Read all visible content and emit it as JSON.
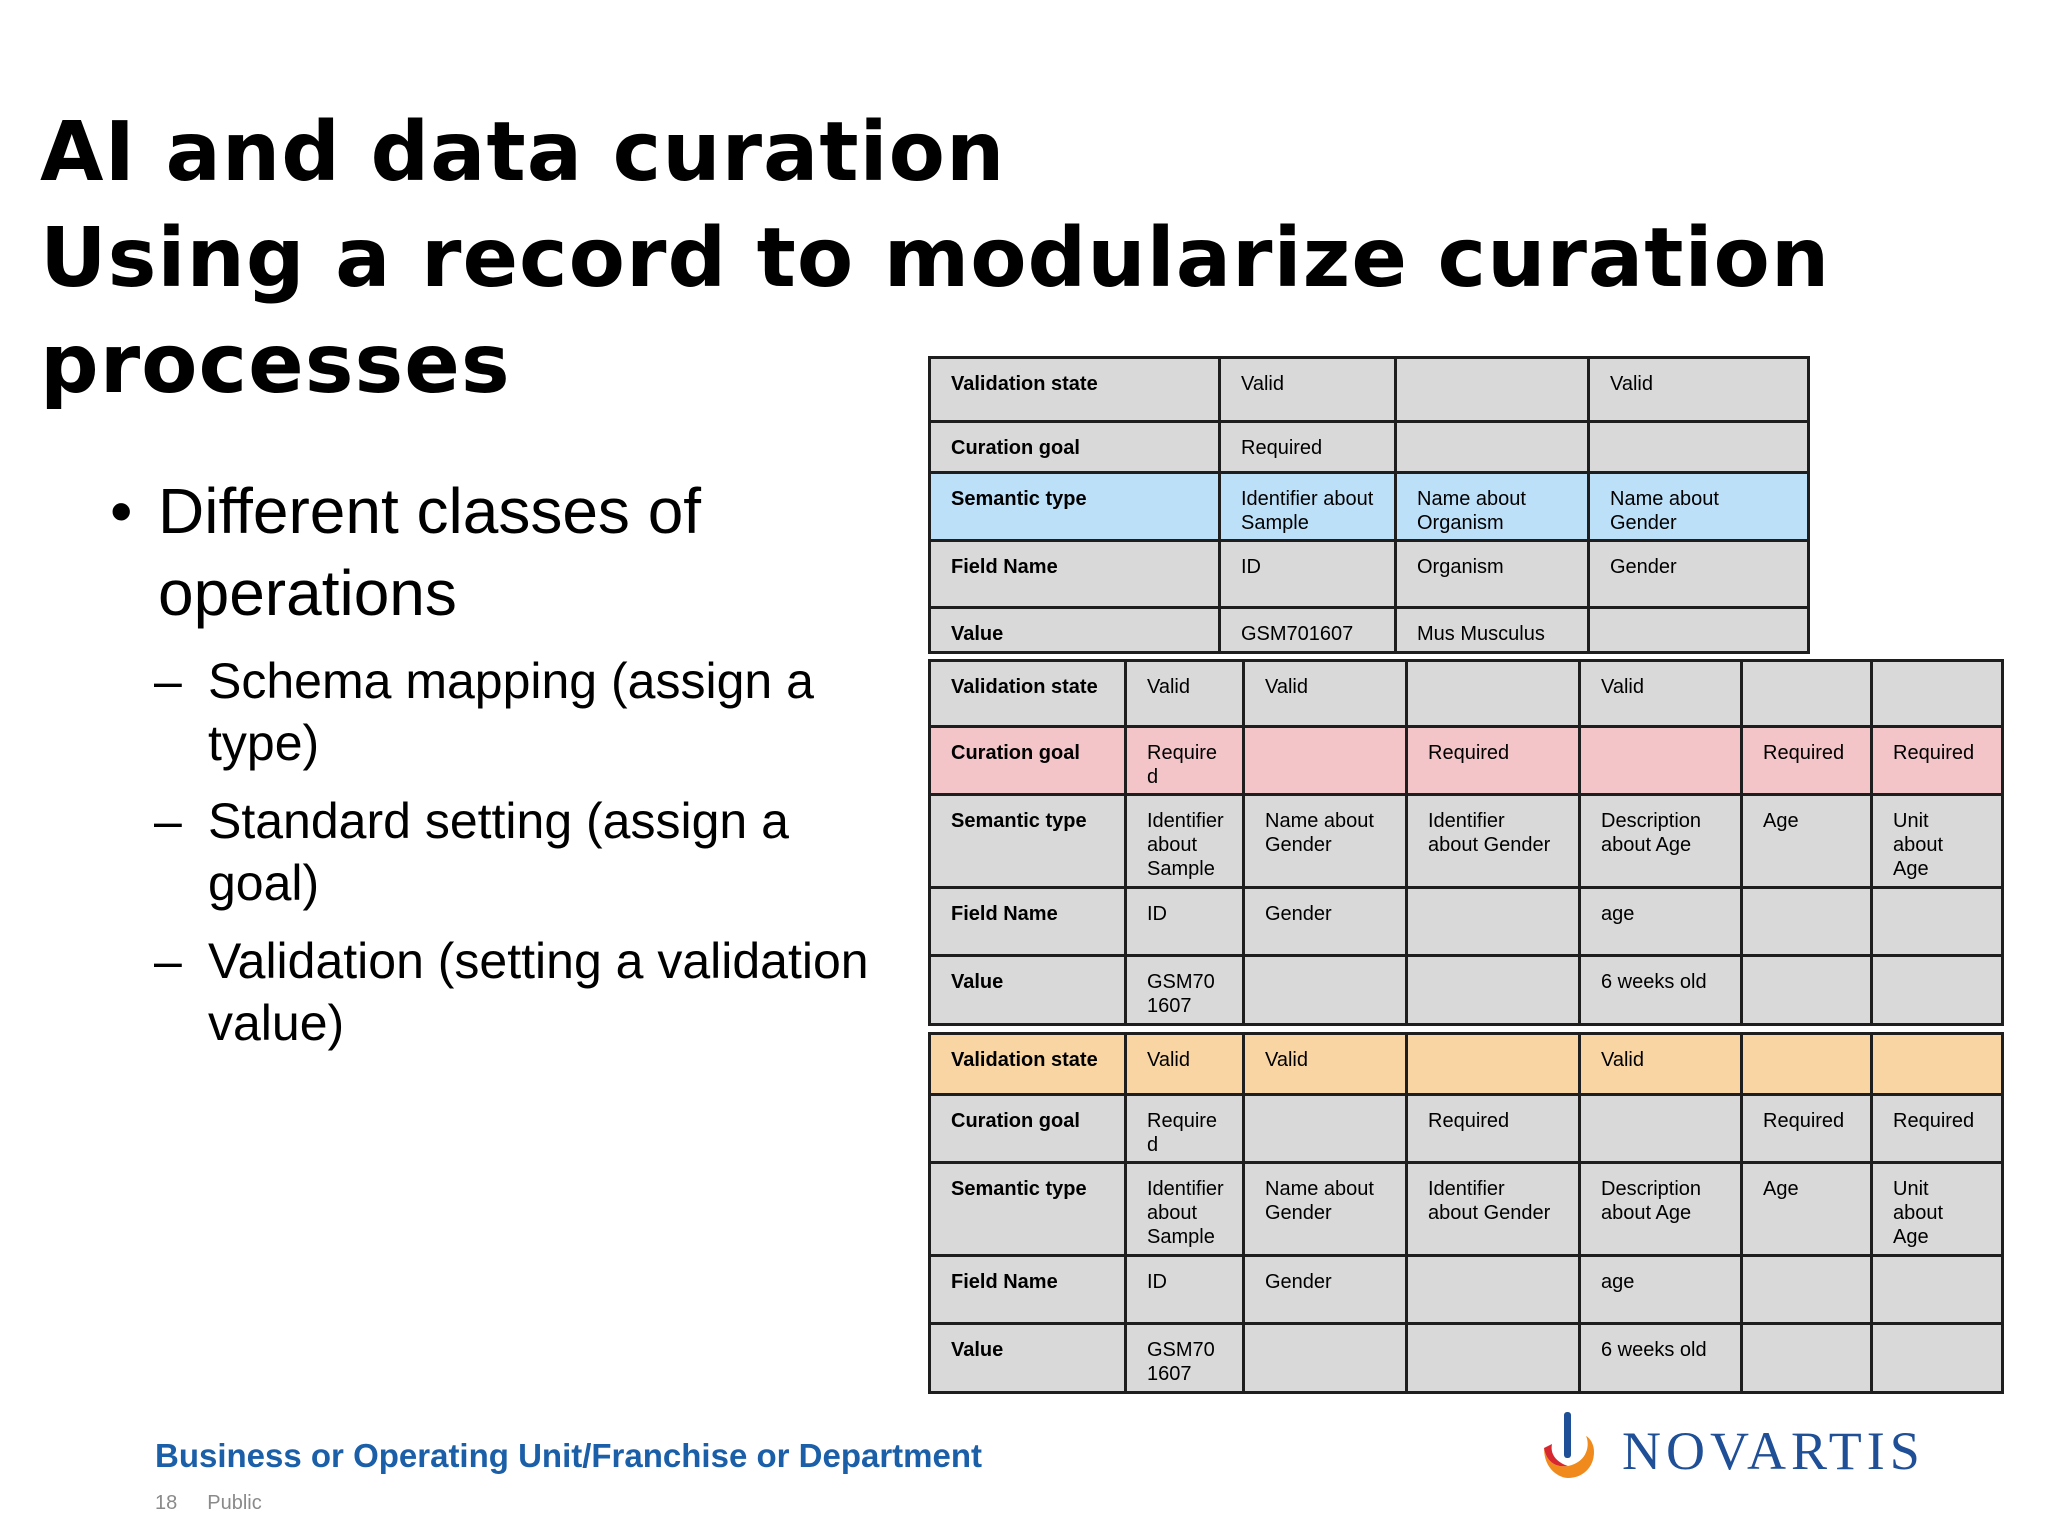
{
  "title": {
    "line1": "AI and data curation",
    "line2": "Using a record to modularize curation",
    "line3": "processes"
  },
  "bullets": {
    "main": "Different classes of operations",
    "subs": [
      "Schema mapping (assign a type)",
      "Standard setting (assign a goal)",
      "Validation (setting a validation value)"
    ]
  },
  "table1": {
    "rows": [
      {
        "label": "Validation state",
        "cells": [
          "Valid",
          "",
          "Valid"
        ]
      },
      {
        "label": "Curation goal",
        "cells": [
          "Required",
          "",
          ""
        ]
      },
      {
        "label": "Semantic type",
        "cells": [
          "Identifier about Sample",
          "Name about Organism",
          "Name about Gender"
        ]
      },
      {
        "label": "Field Name",
        "cells": [
          "ID",
          "Organism",
          "Gender"
        ]
      },
      {
        "label": "Value",
        "cells": [
          "GSM701607",
          "Mus Musculus",
          ""
        ]
      }
    ]
  },
  "table2": {
    "rows": [
      {
        "label": "Validation state",
        "cells": [
          "Valid",
          "Valid",
          "",
          "Valid",
          "",
          ""
        ]
      },
      {
        "label": "Curation goal",
        "cells": [
          "Required",
          "",
          "Required",
          "",
          "Required",
          "Required"
        ]
      },
      {
        "label": "Semantic type",
        "cells": [
          "Identifier about Sample",
          "Name about Gender",
          "Identifier about Gender",
          "Description about Age",
          "Age",
          "Unit about Age"
        ]
      },
      {
        "label": "Field Name",
        "cells": [
          "ID",
          "Gender",
          "",
          "age",
          "",
          ""
        ]
      },
      {
        "label": "Value",
        "cells": [
          "GSM701607",
          "",
          "",
          "6 weeks old",
          "",
          ""
        ]
      }
    ]
  },
  "table3": {
    "rows": [
      {
        "label": "Validation state",
        "cells": [
          "Valid",
          "Valid",
          "",
          "Valid",
          "",
          ""
        ]
      },
      {
        "label": "Curation goal",
        "cells": [
          "Required",
          "",
          "Required",
          "",
          "Required",
          "Required"
        ]
      },
      {
        "label": "Semantic type",
        "cells": [
          "Identifier about Sample",
          "Name about Gender",
          "Identifier about Gender",
          "Description about Age",
          "Age",
          "Unit about Age"
        ]
      },
      {
        "label": "Field Name",
        "cells": [
          "ID",
          "Gender",
          "",
          "age",
          "",
          ""
        ]
      },
      {
        "label": "Value",
        "cells": [
          "GSM701607",
          "",
          "",
          "6 weeks old",
          "",
          ""
        ]
      }
    ]
  },
  "footer": {
    "unit": "Business or Operating Unit/Franchise or Department",
    "page": "18",
    "classification": "Public"
  },
  "logo": {
    "text": "NOVARTIS",
    "colors": {
      "blue": "#1f4f96",
      "orange": "#f08a1c",
      "red": "#d8282f"
    }
  },
  "colors": {
    "cell_gray": "#d9d9d9",
    "semantic_blue": "#bde0f9",
    "goal_pink": "#f3c5c9",
    "validation_orange": "#f8d5a2",
    "footer_blue": "#1a5fa8"
  }
}
